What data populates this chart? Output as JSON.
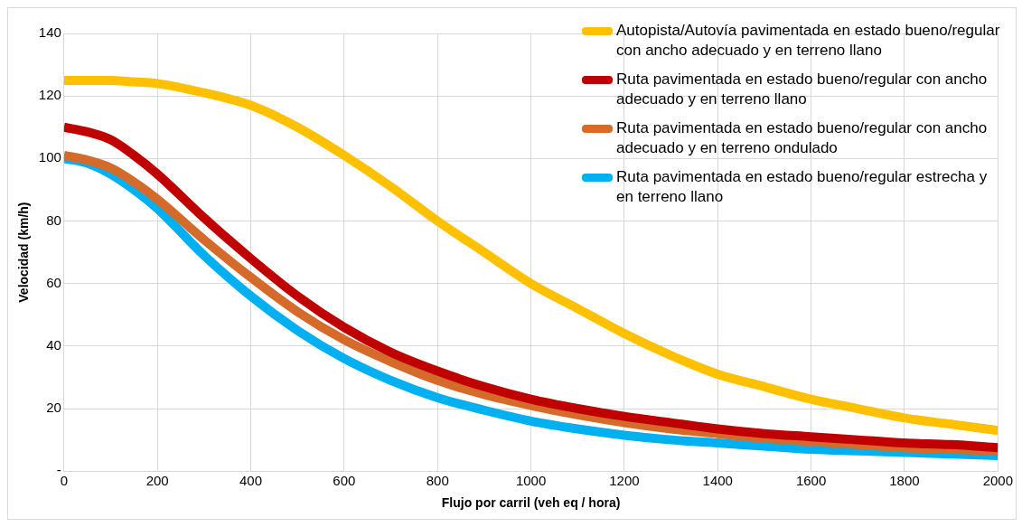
{
  "chart_data": {
    "type": "line",
    "xlabel": "Flujo por carril (veh eq / hora)",
    "ylabel": "Velocidad (km/h)",
    "x": [
      0,
      50,
      100,
      150,
      200,
      300,
      400,
      500,
      600,
      700,
      800,
      900,
      1000,
      1100,
      1200,
      1300,
      1400,
      1500,
      1600,
      1700,
      1800,
      1900,
      2000
    ],
    "series": [
      {
        "name": "Autopista/Autovía pavimentada en estado bueno/regular con ancho adecuado y en terreno llano",
        "color": "#ffc000",
        "values": [
          125,
          125,
          125,
          124.5,
          124,
          121,
          117,
          110,
          101,
          91,
          80,
          70,
          60,
          52,
          44,
          37,
          31,
          27,
          23,
          20,
          17,
          15,
          13
        ]
      },
      {
        "name": "Ruta pavimentada en estado bueno/regular con ancho adecuado y en terreno llano",
        "color": "#c00000",
        "values": [
          110,
          108.5,
          106,
          101,
          95,
          81,
          68,
          56,
          46,
          38,
          32,
          27,
          23,
          20,
          17.5,
          15.5,
          13.5,
          12,
          11,
          10,
          9,
          8.5,
          7.5
        ]
      },
      {
        "name": "Ruta pavimentada en estado bueno/regular con ancho adecuado y en terreno ondulado",
        "color": "#d46b2a",
        "values": [
          101,
          99.5,
          97,
          92.5,
          87,
          74,
          62,
          51,
          42,
          35,
          29,
          24.5,
          21,
          18,
          15.5,
          13.5,
          12,
          10.5,
          9.5,
          8.5,
          7.5,
          7,
          6.5
        ]
      },
      {
        "name": "Ruta pavimentada en estado bueno/regular estrecha y en terreno llano",
        "color": "#00b0f0",
        "values": [
          100,
          98.5,
          95,
          90,
          84,
          69,
          56,
          45,
          36,
          29,
          23.5,
          19.5,
          16,
          13.5,
          11.5,
          10,
          9,
          8,
          7,
          6.5,
          6,
          5.5,
          5
        ]
      }
    ],
    "xlim": [
      0,
      2000
    ],
    "xticks": [
      0,
      200,
      400,
      600,
      800,
      1000,
      1200,
      1400,
      1600,
      1800,
      2000
    ],
    "ylim": [
      0,
      140
    ],
    "yticks": [
      {
        "value": 0,
        "label": "-"
      },
      20,
      40,
      60,
      80,
      100,
      120,
      140
    ],
    "grid": true,
    "legend": "top right",
    "marker": "none",
    "line_style": "solid"
  }
}
